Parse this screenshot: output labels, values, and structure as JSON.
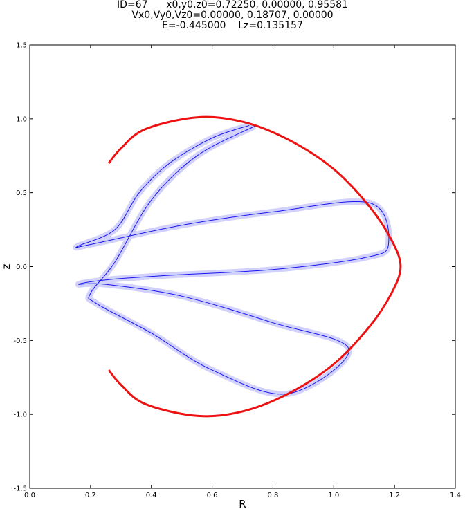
{
  "title_lines": [
    "ID=67      x0,y0,z0=0.72250, 0.00000, 0.95581",
    "Vx0,Vy0,Vz0=0.00000, 0.18707, 0.00000",
    "E=-0.445000    Lz=0.135157"
  ],
  "chart_data": {
    "type": "line",
    "xlabel": "R",
    "ylabel": "z",
    "xlim": [
      0.0,
      1.4
    ],
    "ylim": [
      -1.5,
      1.5
    ],
    "xticks": [
      "0.0",
      "0.2",
      "0.4",
      "0.6",
      "0.8",
      "1.0",
      "1.2",
      "1.4"
    ],
    "yticks": [
      "1.5",
      "1.0",
      "0.5",
      "0.0",
      "-0.5",
      "-1.0",
      "-1.5"
    ],
    "grid": false,
    "colors": {
      "orbit": "#0000ee",
      "zero_velocity_curve": "#ee1111"
    },
    "series": [
      {
        "role": "zero-velocity curve",
        "color": "#ee1111",
        "points": [
          [
            0.26,
            0.7
          ],
          [
            0.3,
            0.8
          ],
          [
            0.38,
            0.93
          ],
          [
            0.55,
            1.01
          ],
          [
            0.7,
            0.98
          ],
          [
            0.85,
            0.86
          ],
          [
            1.0,
            0.66
          ],
          [
            1.12,
            0.4
          ],
          [
            1.19,
            0.18
          ],
          [
            1.22,
            0.0
          ],
          [
            1.19,
            -0.18
          ],
          [
            1.12,
            -0.4
          ],
          [
            1.0,
            -0.66
          ],
          [
            0.85,
            -0.86
          ],
          [
            0.7,
            -0.98
          ],
          [
            0.55,
            -1.01
          ],
          [
            0.38,
            -0.93
          ],
          [
            0.3,
            -0.8
          ],
          [
            0.26,
            -0.7
          ]
        ]
      },
      {
        "role": "orbit",
        "color": "#0000ee",
        "points": [
          [
            0.7225,
            0.9558
          ],
          [
            0.6,
            0.87
          ],
          [
            0.46,
            0.7
          ],
          [
            0.36,
            0.5
          ],
          [
            0.28,
            0.25
          ],
          [
            0.16,
            0.14
          ],
          [
            0.2,
            0.15
          ],
          [
            0.5,
            0.28
          ],
          [
            0.8,
            0.37
          ],
          [
            1.12,
            0.43
          ],
          [
            1.18,
            0.15
          ],
          [
            1.1,
            0.06
          ],
          [
            0.8,
            -0.02
          ],
          [
            0.45,
            -0.06
          ],
          [
            0.25,
            -0.09
          ],
          [
            0.16,
            -0.12
          ],
          [
            0.25,
            -0.12
          ],
          [
            0.5,
            -0.2
          ],
          [
            0.8,
            -0.38
          ],
          [
            1.05,
            -0.56
          ],
          [
            0.85,
            -0.86
          ],
          [
            0.6,
            -0.7
          ],
          [
            0.4,
            -0.45
          ],
          [
            0.22,
            -0.25
          ],
          [
            0.2,
            -0.18
          ],
          [
            0.28,
            0.03
          ],
          [
            0.4,
            0.45
          ],
          [
            0.55,
            0.75
          ],
          [
            0.74,
            0.95
          ]
        ]
      }
    ]
  }
}
